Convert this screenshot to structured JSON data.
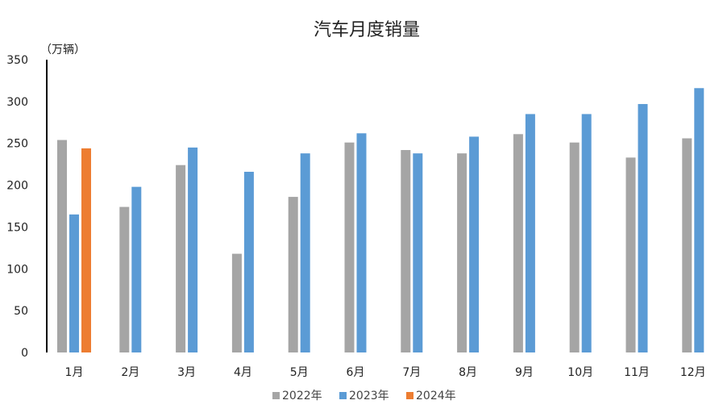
{
  "chart_data": {
    "type": "bar",
    "title": "汽车月度销量",
    "ylabel": "（万辆）",
    "xlabel": "",
    "categories": [
      "1月",
      "2月",
      "3月",
      "4月",
      "5月",
      "6月",
      "7月",
      "8月",
      "9月",
      "10月",
      "11月",
      "12月"
    ],
    "series": [
      {
        "name": "2022年",
        "color": "#a5a5a5",
        "values": [
          254,
          174,
          224,
          118,
          186,
          251,
          242,
          238,
          261,
          251,
          233,
          256
        ]
      },
      {
        "name": "2023年",
        "color": "#5b9bd5",
        "values": [
          165,
          198,
          245,
          216,
          238,
          262,
          238,
          258,
          285,
          285,
          297,
          316
        ]
      },
      {
        "name": "2024年",
        "color": "#ed7d31",
        "values": [
          244,
          null,
          null,
          null,
          null,
          null,
          null,
          null,
          null,
          null,
          null,
          null
        ]
      }
    ],
    "ylim": [
      0,
      350
    ],
    "yticks": [
      "0",
      "50",
      "100",
      "150",
      "200",
      "250",
      "300",
      "350"
    ],
    "grid": false,
    "legend": "bottom"
  }
}
